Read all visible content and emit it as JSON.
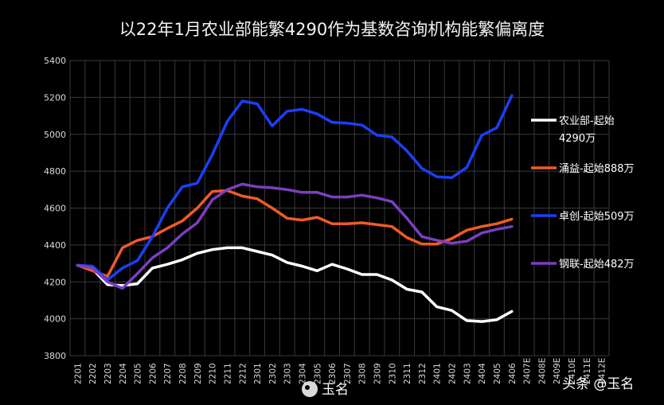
{
  "chart_data": {
    "type": "line",
    "title": "以22年1月农业部能繁4290作为基数咨询机构能繁偏离度",
    "ylim": [
      3800,
      5400
    ],
    "yticks": [
      3800,
      4000,
      4200,
      4400,
      4600,
      4800,
      5000,
      5200,
      5400
    ],
    "grid": true,
    "legend_position": "right",
    "x": [
      "2201",
      "2202",
      "2203",
      "2204",
      "2205",
      "2206",
      "2207",
      "2208",
      "2209",
      "2210",
      "2211",
      "2212",
      "2301",
      "2302",
      "2303",
      "2304",
      "2305",
      "2306",
      "2307",
      "2308",
      "2309",
      "2310",
      "2311",
      "2312",
      "2401",
      "2402",
      "2403",
      "2404",
      "2405",
      "2406",
      "2407E",
      "2408E",
      "2409E",
      "2410E",
      "2411E",
      "2412E"
    ],
    "series": [
      {
        "name": "农业部-起始4290万",
        "legend_lines": [
          "农业部-起始",
          "4290万"
        ],
        "color": "#ffffff",
        "values": [
          4290,
          4270,
          4185,
          4180,
          4190,
          4275,
          4295,
          4320,
          4355,
          4375,
          4385,
          4385,
          4365,
          4345,
          4305,
          4285,
          4260,
          4295,
          4270,
          4240,
          4240,
          4210,
          4160,
          4145,
          4065,
          4045,
          3990,
          3985,
          3995,
          4040,
          null,
          null,
          null,
          null,
          null,
          null
        ]
      },
      {
        "name": "涌益-起始888万",
        "legend_lines": [
          "涌益-起始888万"
        ],
        "color": "#f05a28",
        "values": [
          4290,
          4260,
          4230,
          4385,
          4425,
          4445,
          4490,
          4530,
          4600,
          4690,
          4695,
          4665,
          4650,
          4600,
          4545,
          4535,
          4550,
          4515,
          4515,
          4520,
          4510,
          4500,
          4440,
          4405,
          4405,
          4435,
          4480,
          4500,
          4515,
          4540,
          null,
          null,
          null,
          null,
          null,
          null
        ]
      },
      {
        "name": "卓创-起始509万",
        "legend_lines": [
          "卓创-起始509万"
        ],
        "color": "#1b3ff5",
        "values": [
          4290,
          4285,
          4210,
          4275,
          4315,
          4445,
          4600,
          4715,
          4735,
          4890,
          5070,
          5180,
          5165,
          5045,
          5125,
          5135,
          5110,
          5065,
          5060,
          5050,
          4995,
          4985,
          4910,
          4815,
          4770,
          4765,
          4820,
          4995,
          5035,
          5210,
          null,
          null,
          null,
          null,
          null,
          null
        ]
      },
      {
        "name": "钢联-起始482万",
        "legend_lines": [
          "钢联-起始482万"
        ],
        "color": "#7a3fbf",
        "values": [
          4290,
          4275,
          4200,
          4165,
          4245,
          4330,
          4385,
          4460,
          4520,
          4645,
          4700,
          4730,
          4715,
          4710,
          4700,
          4685,
          4685,
          4660,
          4660,
          4670,
          4655,
          4635,
          4545,
          4445,
          4425,
          4410,
          4420,
          4465,
          4485,
          4500,
          null,
          null,
          null,
          null,
          null,
          null
        ]
      }
    ]
  },
  "watermarks": {
    "center": "玉名",
    "right": "头条 @玉名"
  }
}
